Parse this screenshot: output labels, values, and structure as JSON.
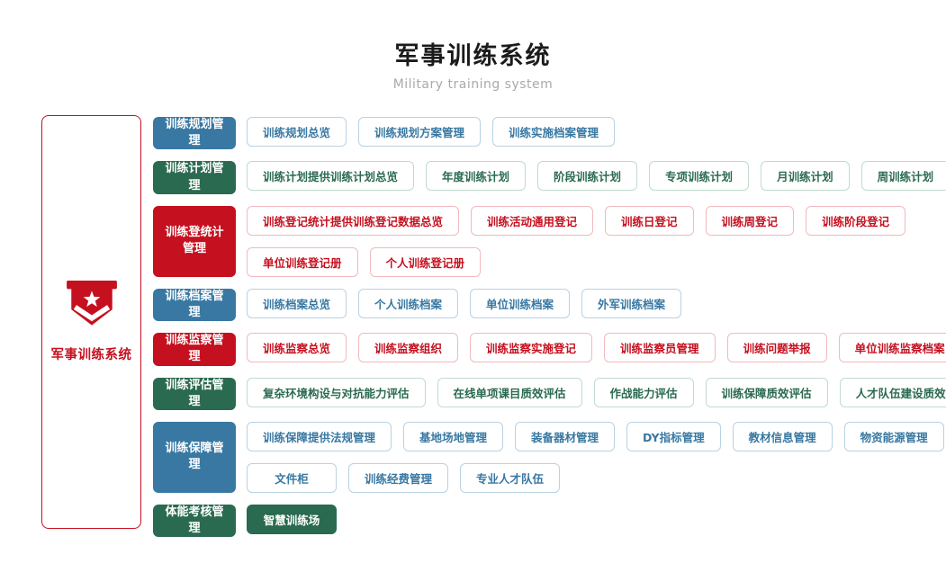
{
  "header": {
    "title": "军事训练系统",
    "subtitle": "Military training system"
  },
  "sidebar": {
    "label": "军事训练系统",
    "icon": "shield-star-icon"
  },
  "colors": {
    "blue": "#3878a2",
    "green": "#2a6a50",
    "red": "#c5101f"
  },
  "rows": [
    {
      "category": "训练规划管理",
      "color": "blue",
      "children": [
        [
          {
            "label": "训练规划总览"
          },
          {
            "label": "训练规划方案管理"
          },
          {
            "label": "训练实施档案管理"
          }
        ]
      ]
    },
    {
      "category": "训练计划管理",
      "color": "green",
      "children": [
        [
          {
            "label": "训练计划提供训练计划总览"
          },
          {
            "label": "年度训练计划"
          },
          {
            "label": "阶段训练计划"
          },
          {
            "label": "专项训练计划"
          },
          {
            "label": "月训练计划"
          },
          {
            "label": "周训练计划"
          }
        ]
      ]
    },
    {
      "category": "训练登统计管理",
      "color": "red",
      "children": [
        [
          {
            "label": "训练登记统计提供训练登记数据总览"
          },
          {
            "label": "训练活动通用登记"
          },
          {
            "label": "训练日登记"
          },
          {
            "label": "训练周登记"
          },
          {
            "label": "训练阶段登记"
          }
        ],
        [
          {
            "label": "单位训练登记册"
          },
          {
            "label": "个人训练登记册"
          }
        ]
      ]
    },
    {
      "category": "训练档案管理",
      "color": "blue",
      "children": [
        [
          {
            "label": "训练档案总览"
          },
          {
            "label": "个人训练档案"
          },
          {
            "label": "单位训练档案"
          },
          {
            "label": "外军训练档案"
          }
        ]
      ]
    },
    {
      "category": "训练监察管理",
      "color": "red",
      "children": [
        [
          {
            "label": "训练监察总览"
          },
          {
            "label": "训练监察组织"
          },
          {
            "label": "训练监察实施登记"
          },
          {
            "label": "训练监察员管理"
          },
          {
            "label": "训练问题举报"
          },
          {
            "label": "单位训练监察档案"
          }
        ]
      ]
    },
    {
      "category": "训练评估管理",
      "color": "green",
      "children": [
        [
          {
            "label": "复杂环境构设与对抗能力评估"
          },
          {
            "label": "在线单项课目质效评估"
          },
          {
            "label": "作战能力评估"
          },
          {
            "label": "训练保障质效评估"
          },
          {
            "label": "人才队伍建设质效评估"
          }
        ]
      ]
    },
    {
      "category": "训练保障管理",
      "color": "blue",
      "children": [
        [
          {
            "label": "训练保障提供法规管理"
          },
          {
            "label": "基地场地管理"
          },
          {
            "label": "装备器材管理"
          },
          {
            "label": "DY指标管理"
          },
          {
            "label": "教材信息管理"
          },
          {
            "label": "物资能源管理"
          }
        ],
        [
          {
            "label": "文件柜",
            "wide": true
          },
          {
            "label": "训练经费管理"
          },
          {
            "label": "专业人才队伍"
          }
        ]
      ]
    },
    {
      "category": "体能考核管理",
      "color": "green",
      "children": [
        [
          {
            "label": "智慧训练场",
            "filled": true,
            "wide": true
          }
        ]
      ]
    }
  ]
}
